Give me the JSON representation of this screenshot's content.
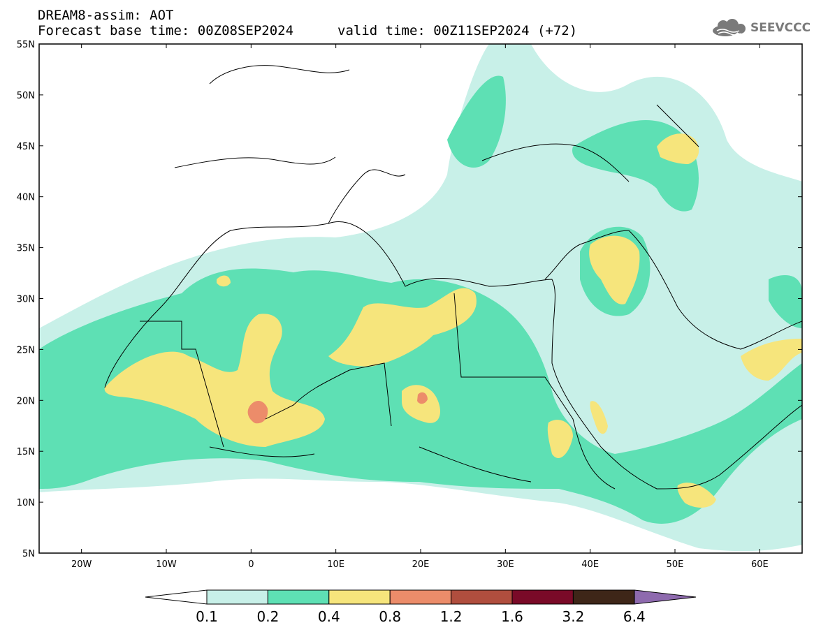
{
  "header": {
    "model_line": "DREAM8-assim: AOT",
    "base_time": "Forecast base time: 00Z08SEP2024",
    "valid_time": "valid time: 00Z11SEP2024 (+72)"
  },
  "logo": {
    "text": "SEEVCCC",
    "icon": "cloud-icon"
  },
  "map": {
    "lat_labels": [
      "55N",
      "50N",
      "45N",
      "40N",
      "35N",
      "30N",
      "25N",
      "20N",
      "15N",
      "10N",
      "5N"
    ],
    "lon_labels": [
      "20W",
      "10W",
      "0",
      "10E",
      "20E",
      "30E",
      "40E",
      "50E",
      "60E"
    ],
    "lat_range": [
      5,
      55
    ],
    "lon_range": [
      -25,
      65
    ],
    "field": "AOT"
  },
  "colorbar": {
    "levels": [
      "0.1",
      "0.2",
      "0.4",
      "0.8",
      "1.2",
      "1.6",
      "3.2",
      "6.4"
    ],
    "colors": {
      "c1": "#c8f0e8",
      "c2": "#5ee0b4",
      "c3": "#f6e57c",
      "c4": "#ec8c6a",
      "c5": "#b04e3e",
      "c6": "#7a0a28",
      "c7": "#3e2618",
      "c8": "#8e6aae"
    }
  }
}
